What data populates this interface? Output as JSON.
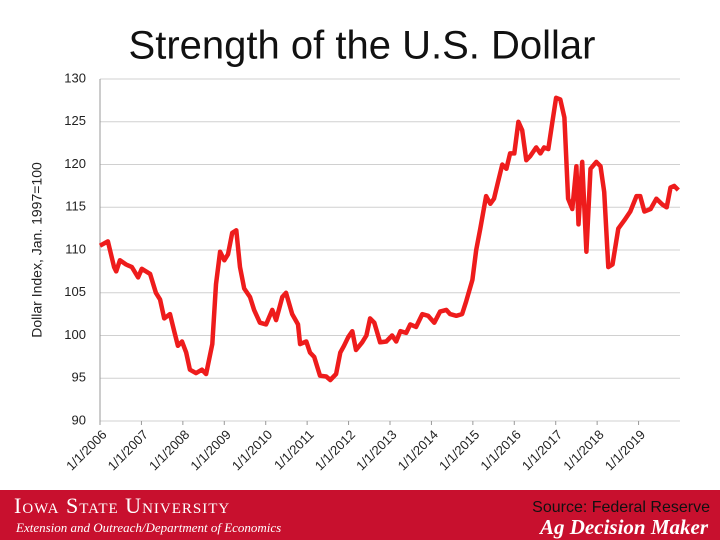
{
  "chart_data": {
    "type": "line",
    "title": "Strength of the U.S. Dollar",
    "y_label": "Dollar Index, Jan. 1997=100",
    "source": "Source: Federal Reserve",
    "footer": {
      "university": "Iowa State University",
      "department": "Extension and Outreach/Department of Economics",
      "program": "Ag Decision Maker"
    },
    "xlim": [
      2006,
      2020
    ],
    "xticks": [
      {
        "value": 2006,
        "label": "1/1/2006"
      },
      {
        "value": 2007,
        "label": "1/1/2007"
      },
      {
        "value": 2008,
        "label": "1/1/2008"
      },
      {
        "value": 2009,
        "label": "1/1/2009"
      },
      {
        "value": 2010,
        "label": "1/1/2010"
      },
      {
        "value": 2011,
        "label": "1/1/2011"
      },
      {
        "value": 2012,
        "label": "1/1/2012"
      },
      {
        "value": 2013,
        "label": "1/1/2013"
      },
      {
        "value": 2014,
        "label": "1/1/2014"
      },
      {
        "value": 2015,
        "label": "1/1/2015"
      },
      {
        "value": 2016,
        "label": "1/1/2016"
      },
      {
        "value": 2017,
        "label": "1/1/2017"
      },
      {
        "value": 2018,
        "label": "1/1/2018"
      },
      {
        "value": 2019,
        "label": "1/1/2019"
      }
    ],
    "ylim": [
      90,
      130
    ],
    "yticks": [
      90,
      95,
      100,
      105,
      110,
      115,
      120,
      125,
      130
    ],
    "grid": true,
    "series": [
      {
        "name": "Dollar Index",
        "color": "#ee1c1c",
        "x": [
          2006.0,
          2006.19,
          2006.34,
          2006.39,
          2006.48,
          2006.63,
          2006.77,
          2006.92,
          2007.01,
          2007.21,
          2007.35,
          2007.45,
          2007.55,
          2007.69,
          2007.79,
          2007.88,
          2007.98,
          2008.08,
          2008.17,
          2008.32,
          2008.46,
          2008.56,
          2008.71,
          2008.8,
          2008.9,
          2009.0,
          2009.09,
          2009.19,
          2009.29,
          2009.38,
          2009.48,
          2009.62,
          2009.72,
          2009.86,
          2010.01,
          2010.16,
          2010.25,
          2010.4,
          2010.49,
          2010.64,
          2010.78,
          2010.83,
          2010.98,
          2011.07,
          2011.17,
          2011.31,
          2011.46,
          2011.56,
          2011.7,
          2011.8,
          2011.89,
          2011.99,
          2012.09,
          2012.18,
          2012.33,
          2012.43,
          2012.52,
          2012.62,
          2012.76,
          2012.91,
          2013.05,
          2013.15,
          2013.25,
          2013.39,
          2013.49,
          2013.63,
          2013.78,
          2013.92,
          2014.07,
          2014.21,
          2014.36,
          2014.45,
          2014.6,
          2014.74,
          2014.84,
          2014.99,
          2015.08,
          2015.18,
          2015.32,
          2015.42,
          2015.51,
          2015.61,
          2015.71,
          2015.81,
          2015.9,
          2016.0,
          2016.1,
          2016.19,
          2016.29,
          2016.39,
          2016.53,
          2016.63,
          2016.72,
          2016.82,
          2016.92,
          2017.01,
          2017.11,
          2017.21,
          2017.3,
          2017.4,
          2017.5,
          2017.55,
          2017.64,
          2017.74,
          2017.84,
          2017.98,
          2018.08,
          2018.17,
          2018.27,
          2018.37,
          2018.51,
          2018.66,
          2018.8,
          2018.95,
          2019.04,
          2019.14,
          2019.29,
          2019.43,
          2019.58,
          2019.68,
          2019.77,
          2019.86,
          2019.96
        ],
        "values": [
          110.5,
          111,
          108,
          107.5,
          108.8,
          108.3,
          108,
          106.8,
          107.8,
          107.2,
          105,
          104.2,
          102,
          102.5,
          100.5,
          98.8,
          99.3,
          98,
          96,
          95.6,
          96,
          95.5,
          99,
          106,
          109.8,
          108.8,
          109.5,
          112,
          112.3,
          108,
          105.5,
          104.5,
          103,
          101.5,
          101.3,
          103,
          101.8,
          104.5,
          105,
          102.5,
          101.3,
          99,
          99.3,
          98,
          97.5,
          95.3,
          95.2,
          94.8,
          95.5,
          98,
          98.8,
          99.8,
          100.5,
          98.3,
          99.2,
          100,
          102,
          101.5,
          99.2,
          99.3,
          100,
          99.3,
          100.5,
          100.3,
          101.3,
          101,
          102.5,
          102.3,
          101.5,
          102.8,
          103,
          102.5,
          102.3,
          102.5,
          104,
          106.5,
          110,
          112.5,
          116.3,
          115.4,
          116,
          118,
          120,
          119.5,
          121.3,
          121.3,
          125,
          124,
          120.5,
          121,
          122,
          121.3,
          122,
          121.8,
          125,
          127.8,
          127.6,
          125.5,
          116,
          114.8,
          119.8,
          113,
          120.3,
          109.8,
          119.5,
          120.3,
          119.8,
          116.8,
          108,
          108.3,
          112.5,
          113.5,
          114.5,
          116.3,
          116.3,
          114.5,
          114.8,
          116,
          115.3,
          115,
          117.3,
          117.5,
          117
        ]
      }
    ]
  }
}
